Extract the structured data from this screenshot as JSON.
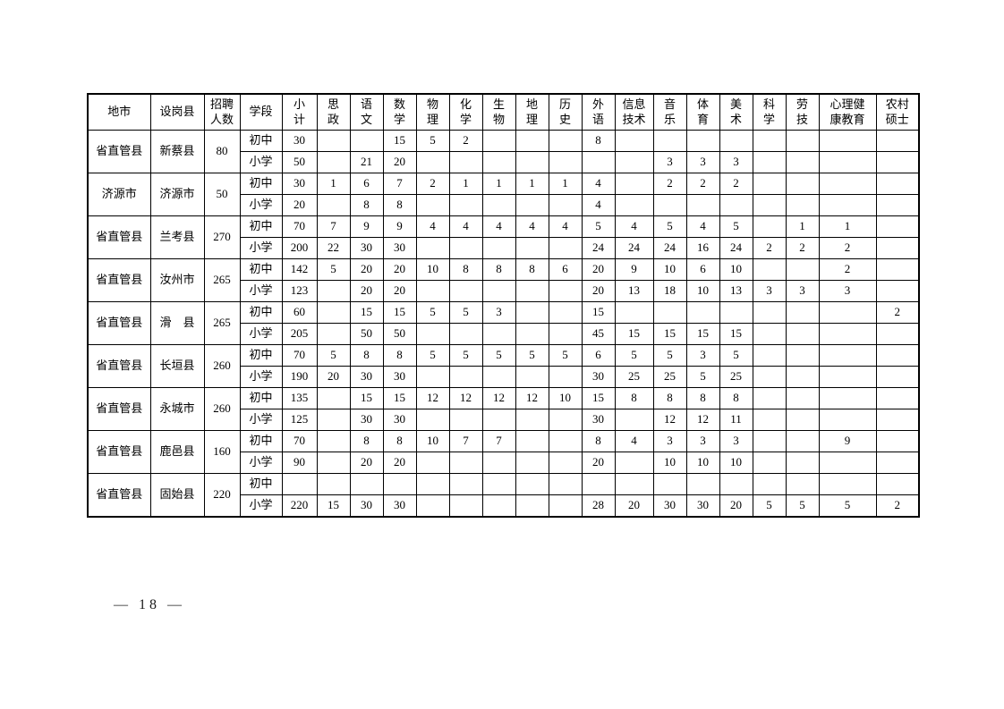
{
  "page": {
    "page_number": "— 18 —"
  },
  "colors": {
    "background": "#ffffff",
    "border": "#000000",
    "text": "#000000"
  },
  "table": {
    "headers": {
      "city": "地市",
      "county": "设岗县",
      "total": "招聘\n人数",
      "level": "学段",
      "subtotal": "小\n计",
      "subjects": [
        "思\n政",
        "语\n文",
        "数\n学",
        "物\n理",
        "化\n学",
        "生\n物",
        "地\n理",
        "历\n史",
        "外\n语",
        "信息\n技术",
        "音\n乐",
        "体\n育",
        "美\n术",
        "科\n学",
        "劳\n技",
        "心理健\n康教育",
        "农村\n硕士"
      ]
    },
    "groups": [
      {
        "city": "省直管县",
        "county": "新蔡县",
        "total": "80",
        "rows": [
          {
            "level": "初中",
            "subtotal": "30",
            "values": [
              "",
              "",
              "15",
              "5",
              "2",
              "",
              "",
              "",
              "8",
              "",
              "",
              "",
              "",
              "",
              "",
              "",
              ""
            ]
          },
          {
            "level": "小学",
            "subtotal": "50",
            "values": [
              "",
              "21",
              "20",
              "",
              "",
              "",
              "",
              "",
              "",
              "",
              "3",
              "3",
              "3",
              "",
              "",
              "",
              ""
            ]
          }
        ]
      },
      {
        "city": "济源市",
        "county": "济源市",
        "total": "50",
        "rows": [
          {
            "level": "初中",
            "subtotal": "30",
            "values": [
              "1",
              "6",
              "7",
              "2",
              "1",
              "1",
              "1",
              "1",
              "4",
              "",
              "2",
              "2",
              "2",
              "",
              "",
              "",
              ""
            ]
          },
          {
            "level": "小学",
            "subtotal": "20",
            "values": [
              "",
              "8",
              "8",
              "",
              "",
              "",
              "",
              "",
              "4",
              "",
              "",
              "",
              "",
              "",
              "",
              "",
              ""
            ]
          }
        ]
      },
      {
        "city": "省直管县",
        "county": "兰考县",
        "total": "270",
        "rows": [
          {
            "level": "初中",
            "subtotal": "70",
            "values": [
              "7",
              "9",
              "9",
              "4",
              "4",
              "4",
              "4",
              "4",
              "5",
              "4",
              "5",
              "4",
              "5",
              "",
              "1",
              "1",
              ""
            ]
          },
          {
            "level": "小学",
            "subtotal": "200",
            "values": [
              "22",
              "30",
              "30",
              "",
              "",
              "",
              "",
              "",
              "24",
              "24",
              "24",
              "16",
              "24",
              "2",
              "2",
              "2",
              ""
            ]
          }
        ]
      },
      {
        "city": "省直管县",
        "county": "汝州市",
        "total": "265",
        "rows": [
          {
            "level": "初中",
            "subtotal": "142",
            "values": [
              "5",
              "20",
              "20",
              "10",
              "8",
              "8",
              "8",
              "6",
              "20",
              "9",
              "10",
              "6",
              "10",
              "",
              "",
              "2",
              ""
            ]
          },
          {
            "level": "小学",
            "subtotal": "123",
            "values": [
              "",
              "20",
              "20",
              "",
              "",
              "",
              "",
              "",
              "20",
              "13",
              "18",
              "10",
              "13",
              "3",
              "3",
              "3",
              ""
            ]
          }
        ]
      },
      {
        "city": "省直管县",
        "county": "滑　县",
        "total": "265",
        "rows": [
          {
            "level": "初中",
            "subtotal": "60",
            "values": [
              "",
              "15",
              "15",
              "5",
              "5",
              "3",
              "",
              "",
              "15",
              "",
              "",
              "",
              "",
              "",
              "",
              "",
              "2"
            ]
          },
          {
            "level": "小学",
            "subtotal": "205",
            "values": [
              "",
              "50",
              "50",
              "",
              "",
              "",
              "",
              "",
              "45",
              "15",
              "15",
              "15",
              "15",
              "",
              "",
              "",
              ""
            ]
          }
        ]
      },
      {
        "city": "省直管县",
        "county": "长垣县",
        "total": "260",
        "rows": [
          {
            "level": "初中",
            "subtotal": "70",
            "values": [
              "5",
              "8",
              "8",
              "5",
              "5",
              "5",
              "5",
              "5",
              "6",
              "5",
              "5",
              "3",
              "5",
              "",
              "",
              "",
              ""
            ]
          },
          {
            "level": "小学",
            "subtotal": "190",
            "values": [
              "20",
              "30",
              "30",
              "",
              "",
              "",
              "",
              "",
              "30",
              "25",
              "25",
              "5",
              "25",
              "",
              "",
              "",
              ""
            ]
          }
        ]
      },
      {
        "city": "省直管县",
        "county": "永城市",
        "total": "260",
        "rows": [
          {
            "level": "初中",
            "subtotal": "135",
            "values": [
              "",
              "15",
              "15",
              "12",
              "12",
              "12",
              "12",
              "10",
              "15",
              "8",
              "8",
              "8",
              "8",
              "",
              "",
              "",
              ""
            ]
          },
          {
            "level": "小学",
            "subtotal": "125",
            "values": [
              "",
              "30",
              "30",
              "",
              "",
              "",
              "",
              "",
              "30",
              "",
              "12",
              "12",
              "11",
              "",
              "",
              "",
              ""
            ]
          }
        ]
      },
      {
        "city": "省直管县",
        "county": "鹿邑县",
        "total": "160",
        "rows": [
          {
            "level": "初中",
            "subtotal": "70",
            "values": [
              "",
              "8",
              "8",
              "10",
              "7",
              "7",
              "",
              "",
              "8",
              "4",
              "3",
              "3",
              "3",
              "",
              "",
              "9",
              ""
            ]
          },
          {
            "level": "小学",
            "subtotal": "90",
            "values": [
              "",
              "20",
              "20",
              "",
              "",
              "",
              "",
              "",
              "20",
              "",
              "10",
              "10",
              "10",
              "",
              "",
              "",
              ""
            ]
          }
        ]
      },
      {
        "city": "省直管县",
        "county": "固始县",
        "total": "220",
        "rows": [
          {
            "level": "初中",
            "subtotal": "",
            "values": [
              "",
              "",
              "",
              "",
              "",
              "",
              "",
              "",
              "",
              "",
              "",
              "",
              "",
              "",
              "",
              "",
              ""
            ]
          },
          {
            "level": "小学",
            "subtotal": "220",
            "values": [
              "15",
              "30",
              "30",
              "",
              "",
              "",
              "",
              "",
              "28",
              "20",
              "30",
              "30",
              "20",
              "5",
              "5",
              "5",
              "2"
            ]
          }
        ]
      }
    ]
  }
}
